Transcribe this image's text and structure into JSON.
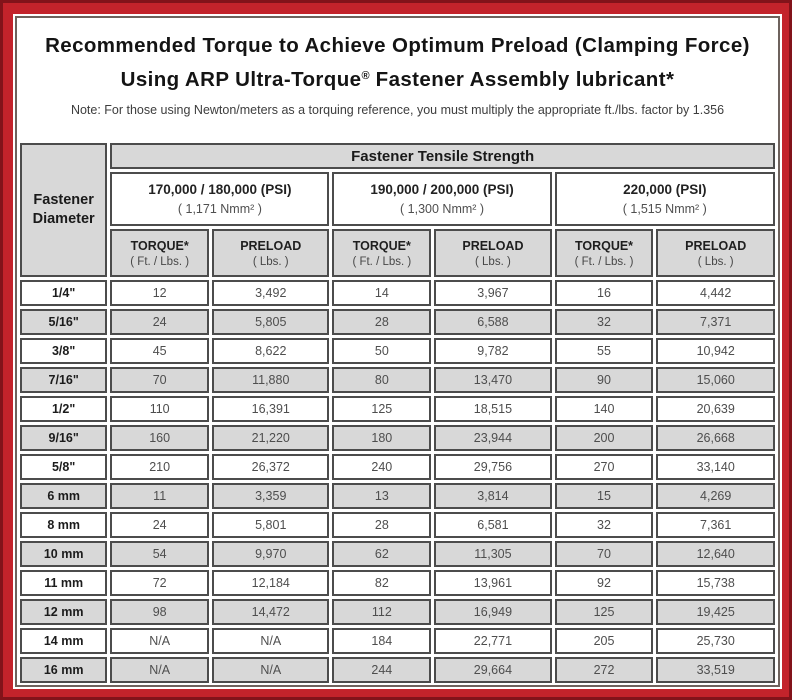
{
  "header": {
    "title_line1": "Recommended Torque to Achieve Optimum Preload (Clamping Force)",
    "title_line2_pre": "Using ARP Ultra-Torque",
    "title_line2_reg": "®",
    "title_line2_post": " Fastener Assembly lubricant*",
    "note": "Note: For those using Newton/meters as a torquing reference, you must multiply the appropriate ft./lbs. factor by 1.356"
  },
  "table": {
    "corner_header": {
      "line1": "Fastener",
      "line2": "Diameter"
    },
    "tensile_header": "Fastener Tensile Strength",
    "groups": [
      {
        "psi": "170,000 / 180,000 (PSI)",
        "nmm": "( 1,171 Nmm² )"
      },
      {
        "psi": "190,000 / 200,000 (PSI)",
        "nmm": "( 1,300 Nmm² )"
      },
      {
        "psi": "220,000 (PSI)",
        "nmm": "( 1,515 Nmm² )"
      }
    ],
    "col_headers": {
      "torque_label": "TORQUE*",
      "torque_sub": "( Ft. / Lbs. )",
      "preload_label": "PRELOAD",
      "preload_sub": "( Lbs. )"
    },
    "rows": [
      {
        "diameter": "1/4\"",
        "values": [
          "12",
          "3,492",
          "14",
          "3,967",
          "16",
          "4,442"
        ]
      },
      {
        "diameter": "5/16\"",
        "values": [
          "24",
          "5,805",
          "28",
          "6,588",
          "32",
          "7,371"
        ]
      },
      {
        "diameter": "3/8\"",
        "values": [
          "45",
          "8,622",
          "50",
          "9,782",
          "55",
          "10,942"
        ]
      },
      {
        "diameter": "7/16\"",
        "values": [
          "70",
          "11,880",
          "80",
          "13,470",
          "90",
          "15,060"
        ]
      },
      {
        "diameter": "1/2\"",
        "values": [
          "110",
          "16,391",
          "125",
          "18,515",
          "140",
          "20,639"
        ]
      },
      {
        "diameter": "9/16\"",
        "values": [
          "160",
          "21,220",
          "180",
          "23,944",
          "200",
          "26,668"
        ]
      },
      {
        "diameter": "5/8\"",
        "values": [
          "210",
          "26,372",
          "240",
          "29,756",
          "270",
          "33,140"
        ]
      },
      {
        "diameter": "6 mm",
        "values": [
          "11",
          "3,359",
          "13",
          "3,814",
          "15",
          "4,269"
        ]
      },
      {
        "diameter": "8 mm",
        "values": [
          "24",
          "5,801",
          "28",
          "6,581",
          "32",
          "7,361"
        ]
      },
      {
        "diameter": "10 mm",
        "values": [
          "54",
          "9,970",
          "62",
          "11,305",
          "70",
          "12,640"
        ]
      },
      {
        "diameter": "11 mm",
        "values": [
          "72",
          "12,184",
          "82",
          "13,961",
          "92",
          "15,738"
        ]
      },
      {
        "diameter": "12 mm",
        "values": [
          "98",
          "14,472",
          "112",
          "16,949",
          "125",
          "19,425"
        ]
      },
      {
        "diameter": "14 mm",
        "values": [
          "N/A",
          "N/A",
          "184",
          "22,771",
          "205",
          "25,730"
        ]
      },
      {
        "diameter": "16 mm",
        "values": [
          "N/A",
          "N/A",
          "244",
          "29,664",
          "272",
          "33,519"
        ]
      }
    ]
  },
  "colors": {
    "frame_red": "#c3232b",
    "frame_dark_edge": "#82131a",
    "cell_gray": "#d8d8d8",
    "cell_border": "#4c4c4c"
  }
}
